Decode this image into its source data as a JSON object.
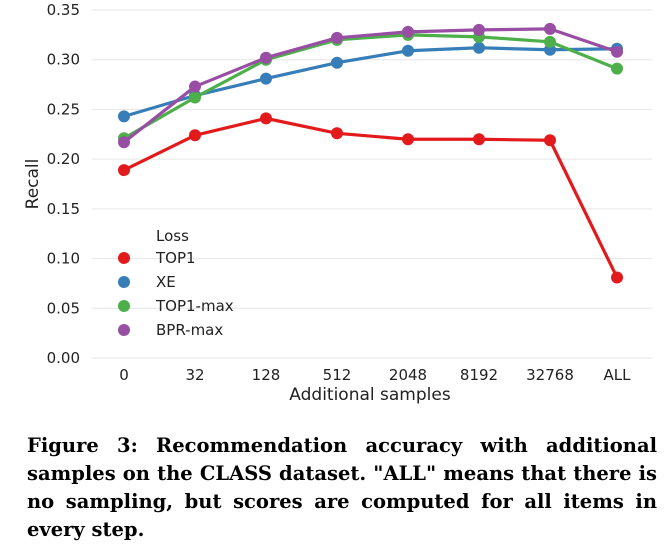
{
  "chart_data": {
    "type": "line",
    "categories": [
      "0",
      "32",
      "128",
      "512",
      "2048",
      "8192",
      "32768",
      "ALL"
    ],
    "xlabel": "Additional samples",
    "ylabel": "Recall",
    "ylim": [
      0,
      0.35
    ],
    "yticks": [
      "0.00",
      "0.05",
      "0.10",
      "0.15",
      "0.20",
      "0.25",
      "0.30",
      "0.35"
    ],
    "grid": true,
    "legend_title": "Loss",
    "legend_position": "lower-left",
    "series": [
      {
        "name": "TOP1",
        "color": "#e31a1c",
        "values": [
          0.189,
          0.224,
          0.241,
          0.226,
          0.22,
          0.22,
          0.219,
          0.081
        ]
      },
      {
        "name": "XE",
        "color": "#377eb8",
        "values": [
          0.243,
          0.264,
          0.281,
          0.297,
          0.309,
          0.312,
          0.31,
          0.311
        ]
      },
      {
        "name": "TOP1-max",
        "color": "#4daf4a",
        "values": [
          0.221,
          0.262,
          0.3,
          0.32,
          0.325,
          0.323,
          0.318,
          0.291
        ]
      },
      {
        "name": "BPR-max",
        "color": "#984ea3",
        "values": [
          0.217,
          0.273,
          0.302,
          0.322,
          0.328,
          0.33,
          0.331,
          0.308
        ]
      }
    ]
  },
  "caption": "Figure 3: Recommendation accuracy with additional samples on the CLASS dataset. \"ALL\" means that there is no sampling, but scores are computed for all items in every step."
}
